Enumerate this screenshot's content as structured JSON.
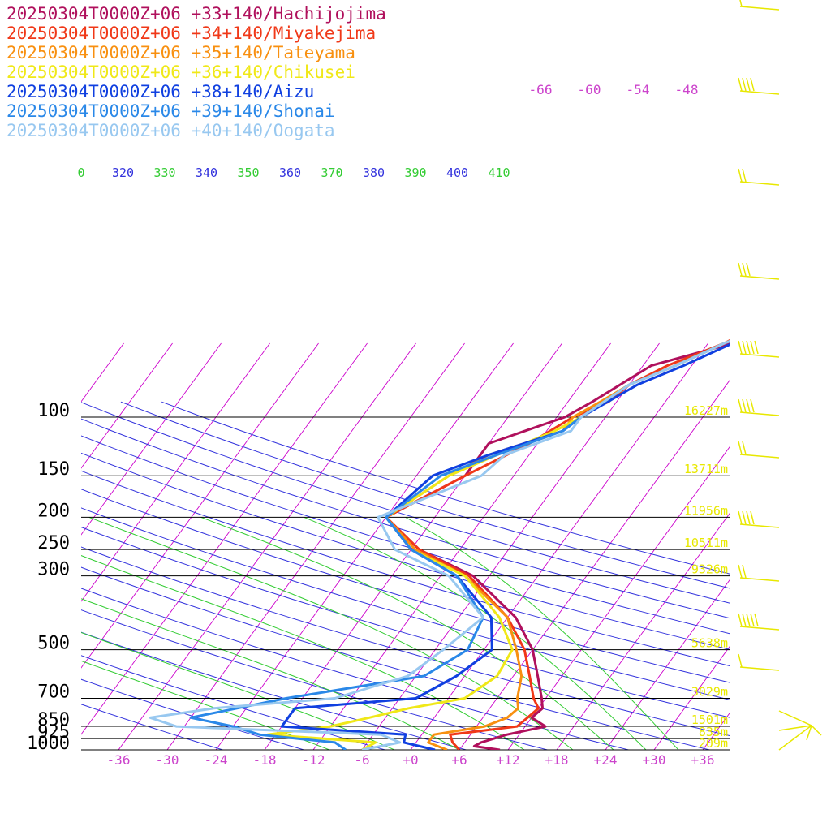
{
  "chart_data": {
    "type": "line",
    "title": "",
    "colors": {
      "background": "#ffffff",
      "isobar": "#000000",
      "isotherm": "#cc00cc",
      "theta": "#3333dd",
      "theta_e": "#33cc33",
      "tick_label": "#cc44cc",
      "height_label": "#e8e800",
      "wind": "#e8e800"
    },
    "pressure_levels": [
      "100",
      "150",
      "200",
      "250",
      "300",
      "500",
      "700",
      "850",
      "925",
      "1000"
    ],
    "x_ticks": [
      "-36",
      "-30",
      "-24",
      "-18",
      "-12",
      "-6",
      "+0",
      "+6",
      "+12",
      "+18",
      "+24",
      "+30",
      "+36"
    ],
    "upper_isotherm_labels": [
      "-66",
      "-60",
      "-54",
      "-48"
    ],
    "theta_labels": [
      "0",
      "320",
      "330",
      "340",
      "350",
      "360",
      "370",
      "380",
      "390",
      "400",
      "410"
    ],
    "height_labels": [
      {
        "p": 100,
        "label": "16227m"
      },
      {
        "p": 150,
        "label": "13711m"
      },
      {
        "p": 200,
        "label": "11956m"
      },
      {
        "p": 250,
        "label": "10511m"
      },
      {
        "p": 300,
        "label": "9326m"
      },
      {
        "p": 500,
        "label": "5638m"
      },
      {
        "p": 700,
        "label": "3029m"
      },
      {
        "p": 850,
        "label": "1501m"
      },
      {
        "p": 925,
        "label": "835m"
      },
      {
        "p": 1000,
        "label": "209m"
      }
    ],
    "series": [
      {
        "name": "20250304T0000Z+06 +33+140/Hachijojima",
        "color": "#b0105c",
        "points": [
          [
            1000,
            11
          ],
          [
            975,
            7.5
          ],
          [
            950,
            8
          ],
          [
            900,
            10.5
          ],
          [
            850,
            14.5
          ],
          [
            800,
            12
          ],
          [
            750,
            12.5
          ],
          [
            700,
            11.5
          ],
          [
            600,
            9
          ],
          [
            500,
            6
          ],
          [
            400,
            1
          ],
          [
            300,
            -8
          ],
          [
            250,
            -17
          ],
          [
            200,
            -24
          ],
          [
            150,
            -18
          ],
          [
            120,
            -18
          ],
          [
            100,
            -11
          ],
          [
            90,
            -9
          ],
          [
            70,
            -5
          ],
          [
            60,
            3
          ],
          [
            50,
            8
          ]
        ]
      },
      {
        "name": "20250304T0000Z+06 +34+140/Miyakejima",
        "color": "#f03818",
        "points": [
          [
            1000,
            6
          ],
          [
            950,
            4.5
          ],
          [
            900,
            3.5
          ],
          [
            850,
            11
          ],
          [
            800,
            11.5
          ],
          [
            750,
            12
          ],
          [
            700,
            10.5
          ],
          [
            600,
            8
          ],
          [
            500,
            5
          ],
          [
            400,
            0
          ],
          [
            300,
            -8.5
          ],
          [
            250,
            -17
          ],
          [
            200,
            -24
          ],
          [
            150,
            -18
          ],
          [
            120,
            -13
          ],
          [
            100,
            -10
          ],
          [
            90,
            -7
          ],
          [
            80,
            -6
          ],
          [
            70,
            -3
          ],
          [
            60,
            2
          ],
          [
            50,
            6
          ]
        ]
      },
      {
        "name": "20250304T0000Z+06 +35+140/Tateyama",
        "color": "#f89010",
        "points": [
          [
            1000,
            4.5
          ],
          [
            950,
            1.5
          ],
          [
            900,
            1.5
          ],
          [
            850,
            7
          ],
          [
            800,
            9
          ],
          [
            750,
            9.5
          ],
          [
            700,
            8.5
          ],
          [
            600,
            7
          ],
          [
            500,
            4
          ],
          [
            400,
            0
          ],
          [
            300,
            -9
          ],
          [
            250,
            -17.5
          ],
          [
            200,
            -24
          ],
          [
            150,
            -20
          ],
          [
            130,
            -17
          ],
          [
            110,
            -10
          ],
          [
            100,
            -10
          ],
          [
            90,
            -8
          ],
          [
            80,
            -6
          ],
          [
            70,
            -2
          ],
          [
            60,
            2
          ],
          [
            50,
            8
          ]
        ]
      },
      {
        "name": "20250304T0000Z+06 +36+140/Chikusei",
        "color": "#f0e818",
        "points": [
          [
            1000,
            -6
          ],
          [
            950,
            -5
          ],
          [
            900,
            -19
          ],
          [
            850,
            -12
          ],
          [
            800,
            -8
          ],
          [
            750,
            -4
          ],
          [
            700,
            2
          ],
          [
            600,
            4
          ],
          [
            500,
            3.5
          ],
          [
            400,
            -1
          ],
          [
            300,
            -9
          ],
          [
            250,
            -18
          ],
          [
            200,
            -24
          ],
          [
            150,
            -20
          ],
          [
            130,
            -16
          ],
          [
            110,
            -11
          ],
          [
            100,
            -9
          ],
          [
            80,
            -6
          ],
          [
            70,
            -2
          ],
          [
            60,
            2
          ],
          [
            50,
            8
          ]
        ]
      },
      {
        "name": "20250304T0000Z+06 +38+140/Aizu",
        "color": "#1040e0",
        "points": [
          [
            1000,
            3
          ],
          [
            950,
            -1.5
          ],
          [
            900,
            -2
          ],
          [
            850,
            -18
          ],
          [
            800,
            -18
          ],
          [
            750,
            -18
          ],
          [
            700,
            -4
          ],
          [
            600,
            -1
          ],
          [
            500,
            1
          ],
          [
            400,
            -2
          ],
          [
            300,
            -10
          ],
          [
            250,
            -18
          ],
          [
            200,
            -24
          ],
          [
            150,
            -22
          ],
          [
            130,
            -17
          ],
          [
            110,
            -10
          ],
          [
            100,
            -9
          ],
          [
            80,
            -5
          ],
          [
            70,
            -1
          ],
          [
            60,
            3
          ],
          [
            50,
            8
          ]
        ]
      },
      {
        "name": "20250304T0000Z+06 +39+140/Shonai",
        "color": "#2a88e8",
        "points": [
          [
            1000,
            -8
          ],
          [
            950,
            -10
          ],
          [
            900,
            -20
          ],
          [
            850,
            -24
          ],
          [
            800,
            -30
          ],
          [
            700,
            -20
          ],
          [
            600,
            -5
          ],
          [
            500,
            -2
          ],
          [
            400,
            -3
          ],
          [
            300,
            -10
          ],
          [
            250,
            -18
          ],
          [
            200,
            -24
          ],
          [
            150,
            -21
          ],
          [
            130,
            -16
          ],
          [
            110,
            -10
          ],
          [
            100,
            -9
          ],
          [
            80,
            -6
          ],
          [
            70,
            -2
          ],
          [
            60,
            2
          ],
          [
            50,
            8
          ]
        ]
      },
      {
        "name": "20250304T0000Z+06 +40+140/Oogata",
        "color": "#98c8f0",
        "points": [
          [
            1000,
            -6
          ],
          [
            950,
            -2
          ],
          [
            900,
            -5
          ],
          [
            850,
            -31
          ],
          [
            800,
            -35
          ],
          [
            750,
            -28
          ],
          [
            700,
            -14
          ],
          [
            600,
            -7
          ],
          [
            500,
            -5
          ],
          [
            400,
            -3
          ],
          [
            300,
            -11
          ],
          [
            250,
            -20
          ],
          [
            200,
            -25
          ],
          [
            150,
            -16
          ],
          [
            130,
            -15
          ],
          [
            110,
            -9
          ],
          [
            100,
            -9
          ],
          [
            80,
            -6
          ],
          [
            70,
            -2
          ],
          [
            60,
            2
          ],
          [
            50,
            8
          ]
        ]
      }
    ]
  }
}
